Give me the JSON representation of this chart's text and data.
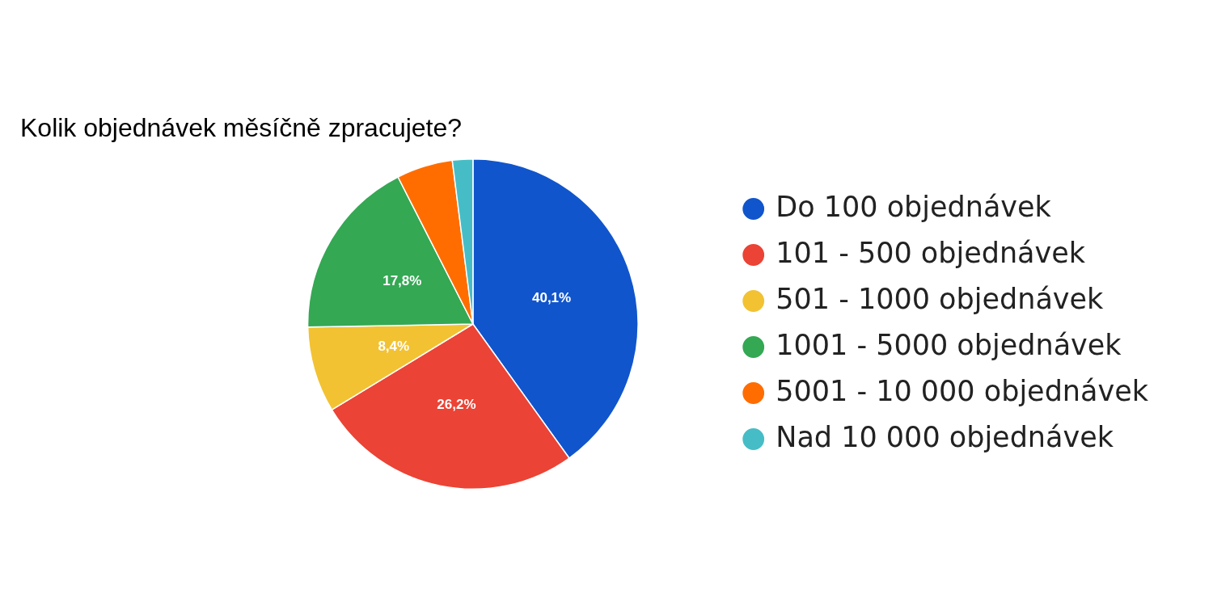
{
  "chart_data": {
    "type": "pie",
    "title": "Kolik objednávek měsíčně zpracujete?",
    "categories": [
      "Do 100 objednávek",
      "101 - 500 objednávek",
      "501 - 1000 objednávek",
      "1001 - 5000 objednávek",
      "5001 - 10 000 objednávek",
      "Nad 10 000 objednávek"
    ],
    "values": [
      40.1,
      26.2,
      8.4,
      17.8,
      5.5,
      2.0
    ],
    "colors": [
      "#1155cc",
      "#eb4335",
      "#f2c232",
      "#34a853",
      "#ff6d00",
      "#46bdc6"
    ],
    "value_labels": [
      "40,1%",
      "26,2%",
      "8,4%",
      "17,8%",
      null,
      null
    ],
    "legend": "right"
  }
}
